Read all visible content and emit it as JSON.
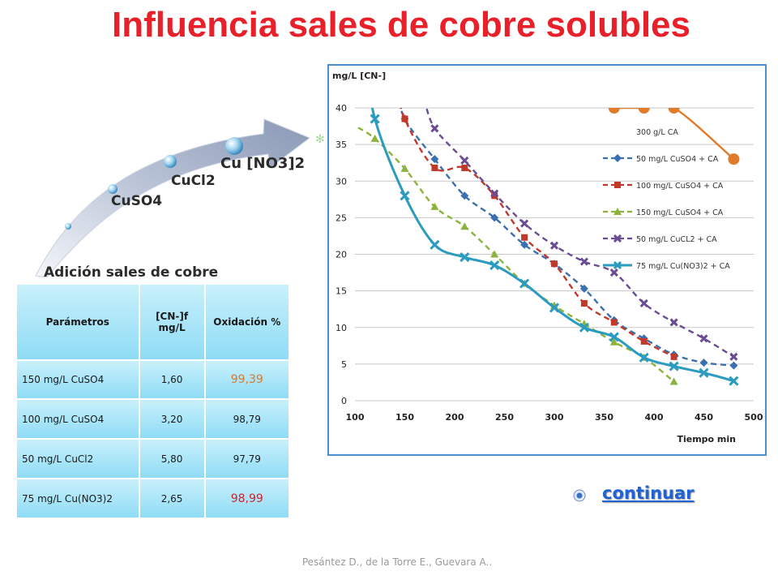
{
  "title": "Influencia sales de cobre solubles",
  "arrow": {
    "stages": [
      "CuSO4",
      "CuCl2",
      "Cu [NO3]2"
    ],
    "caption": "Adición sales de cobre"
  },
  "table": {
    "headers": [
      "Parámetros",
      "[CN-]f mg/L",
      "Oxidación %"
    ],
    "rows": [
      {
        "param": "150 mg/L CuSO4",
        "cn": "1,60",
        "ox": "99,39"
      },
      {
        "param": "100 mg/L CuSO4",
        "cn": "3,20",
        "ox": "98,79"
      },
      {
        "param": "50 mg/L CuCl2",
        "cn": "5,80",
        "ox": "97,79"
      },
      {
        "param": "75 mg/L Cu(NO3)2",
        "cn": "2,65",
        "ox": "98,99"
      }
    ]
  },
  "link": {
    "label": "continuar"
  },
  "footer": "Pesántez D., de la Torre E., Guevara A..",
  "colors": {
    "title": "#e8202a",
    "s300": "#e07b2a",
    "s50cuso4": "#3a6fb0",
    "s100cuso4": "#c0392b",
    "s150cuso4": "#8db33c",
    "s50cucl2": "#6a4c93",
    "s75cuno3": "#2b9bbf"
  },
  "chart_data": {
    "type": "line",
    "title": "",
    "xlabel": "Tiempo min",
    "ylabel": "mg/L [CN-]",
    "xlim": [
      100,
      500
    ],
    "ylim": [
      0,
      40
    ],
    "xticks": [
      100,
      150,
      200,
      250,
      300,
      350,
      400,
      450,
      500
    ],
    "yticks": [
      0,
      5,
      10,
      15,
      20,
      25,
      30,
      35,
      40
    ],
    "grid": "horizontal",
    "legend": "top-right",
    "series": [
      {
        "name": "300 g/L CA",
        "color": "#e07b2a",
        "marker": "circle",
        "dash": false,
        "x": [
          360,
          390,
          420,
          480
        ],
        "y": [
          40,
          40,
          40,
          33
        ]
      },
      {
        "name": "50 mg/L CuSO4 + CA",
        "color": "#3a6fb0",
        "marker": "diamond",
        "dash": true,
        "x": [
          150,
          180,
          210,
          240,
          270,
          300,
          330,
          360,
          390,
          420,
          450,
          480
        ],
        "y": [
          38.5,
          33,
          28,
          25,
          21.3,
          18.7,
          15.3,
          11,
          8.5,
          6.3,
          5.2,
          4.8
        ]
      },
      {
        "name": "100 mg/L CuSO4 + CA",
        "color": "#c0392b",
        "marker": "square",
        "dash": true,
        "x": [
          150,
          180,
          210,
          240,
          270,
          300,
          330,
          360,
          390,
          420
        ],
        "y": [
          38.5,
          31.8,
          31.8,
          28,
          22.3,
          18.7,
          13.3,
          10.7,
          8.1,
          6
        ]
      },
      {
        "name": "150 mg/L CuSO4 + CA",
        "color": "#8db33c",
        "marker": "triangle",
        "dash": true,
        "x": [
          120,
          150,
          180,
          210,
          240,
          270,
          300,
          330,
          360,
          390,
          420
        ],
        "y": [
          35.8,
          31.7,
          26.5,
          23.8,
          20,
          16,
          13,
          10.5,
          8,
          5.9,
          2.6
        ]
      },
      {
        "name": "50 mg/L CuCL2 + CA",
        "color": "#6a4c93",
        "marker": "x",
        "dash": true,
        "x": [
          180,
          210,
          240,
          270,
          300,
          330,
          360,
          390,
          420,
          450,
          480
        ],
        "y": [
          37.2,
          32.8,
          28.3,
          24.2,
          21.2,
          19,
          17.5,
          13.3,
          10.7,
          8.5,
          6
        ]
      },
      {
        "name": "75 mg/L Cu(NO3)2 + CA",
        "color": "#2b9bbf",
        "marker": "x",
        "dash": false,
        "x": [
          120,
          150,
          180,
          210,
          240,
          270,
          300,
          330,
          360,
          390,
          420,
          450,
          480
        ],
        "y": [
          38.5,
          28,
          21.3,
          19.6,
          18.5,
          16,
          12.7,
          10,
          8.7,
          5.9,
          4.7,
          3.8,
          2.7
        ]
      }
    ]
  }
}
